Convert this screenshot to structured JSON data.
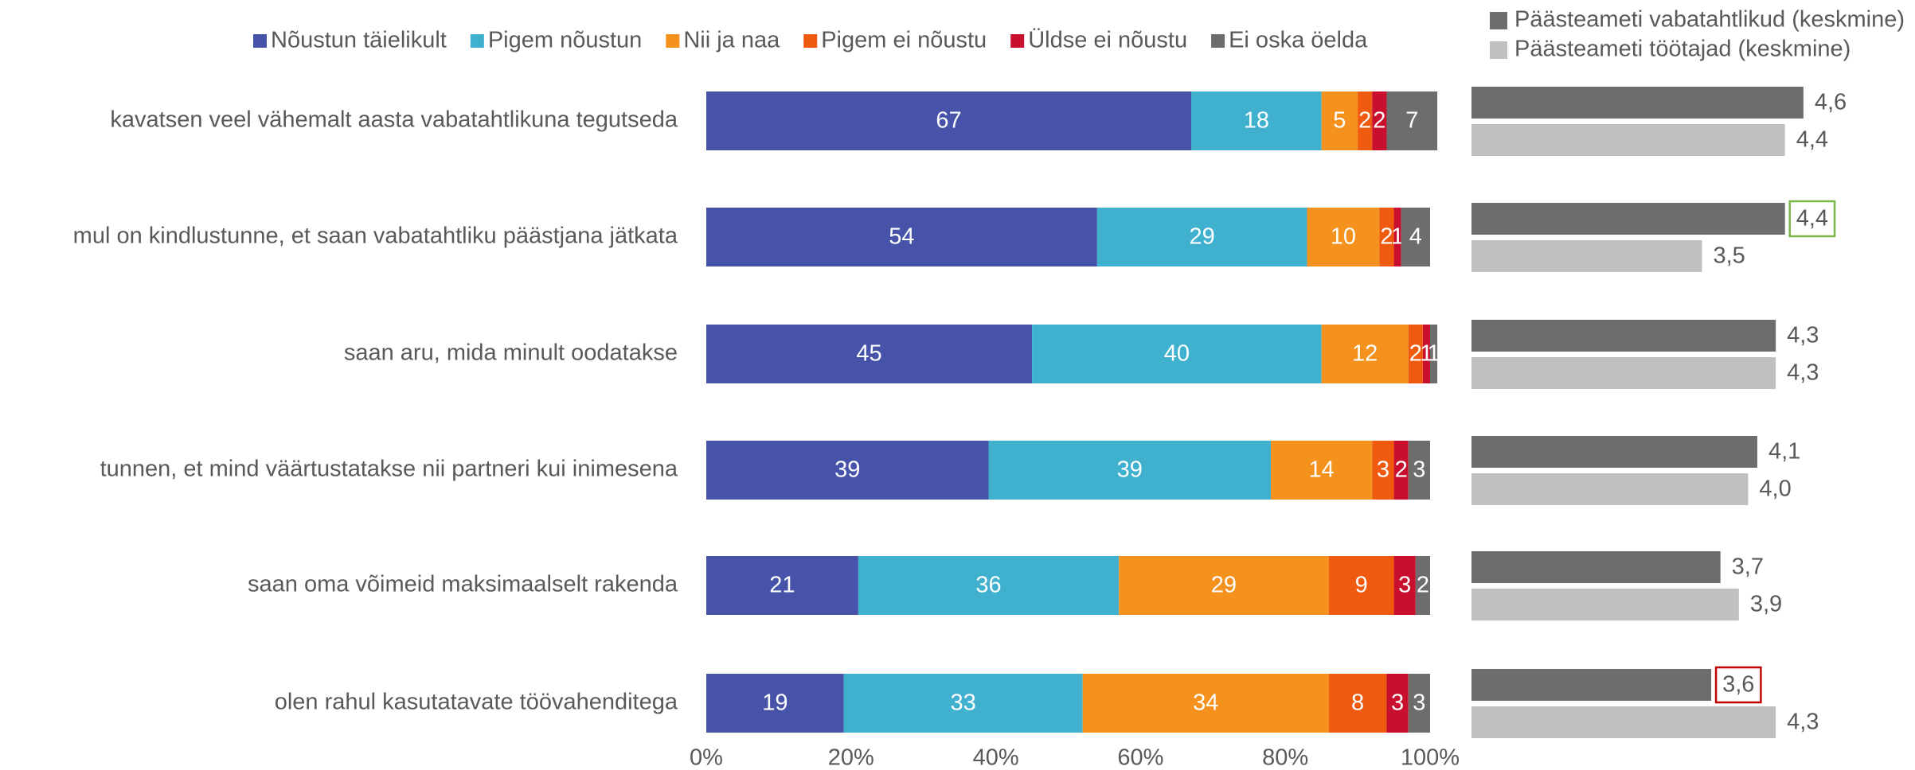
{
  "chart_data": [
    {
      "type": "stacked_bar_horizontal",
      "categories": [
        "kavatsen veel vähemalt aasta vabatahtlikuna tegutseda",
        "mul on kindlustunne, et saan vabatahtliku päästjana jätkata",
        "saan aru, mida minult oodatakse",
        "tunnen, et mind väärtustatakse nii partneri kui inimesena",
        "saan oma võimeid maksimaalselt rakenda",
        "olen rahul kasutatavate töövahenditega"
      ],
      "series": [
        {
          "name": "Nõustun täielikult",
          "color": "#4653a8",
          "values": [
            67,
            54,
            45,
            39,
            21,
            19
          ]
        },
        {
          "name": "Pigem nõustun",
          "color": "#3fb1cf",
          "values": [
            18,
            29,
            40,
            39,
            36,
            33
          ]
        },
        {
          "name": "Nii ja naa",
          "color": "#f5921e",
          "values": [
            5,
            10,
            12,
            14,
            29,
            34
          ]
        },
        {
          "name": "Pigem ei nõustu",
          "color": "#ef5a0f",
          "values": [
            2,
            2,
            2,
            3,
            9,
            8
          ]
        },
        {
          "name": "Üldse ei nõustu",
          "color": "#c8102e",
          "values": [
            2,
            1,
            1,
            2,
            3,
            3
          ]
        },
        {
          "name": "Ei oska öelda",
          "color": "#6d6d6d",
          "values": [
            7,
            4,
            1,
            3,
            2,
            3
          ]
        }
      ],
      "xlim": [
        0,
        100
      ],
      "xticks": [
        {
          "value": 0,
          "label": "0%"
        },
        {
          "value": 20,
          "label": "20%"
        },
        {
          "value": 40,
          "label": "40%"
        },
        {
          "value": 60,
          "label": "60%"
        },
        {
          "value": 80,
          "label": "80%"
        },
        {
          "value": 100,
          "label": "100%"
        }
      ],
      "legend": "top"
    },
    {
      "type": "bar_horizontal",
      "series": [
        {
          "name": "Päästeameti vabatahtlikud (keskmine)",
          "color": "#6d6d6d",
          "values": [
            4.6,
            4.4,
            4.3,
            4.1,
            3.7,
            3.6
          ],
          "value_labels": [
            "4,6",
            "4,4",
            "4,3",
            "4,1",
            "3,7",
            "3,6"
          ],
          "label_borders": [
            null,
            "#7ab648",
            null,
            null,
            null,
            "#c00000"
          ]
        },
        {
          "name": "Päästeameti töötajad (keskmine)",
          "color": "#c0c0c0",
          "values": [
            4.4,
            3.5,
            4.3,
            4.0,
            3.9,
            4.3
          ],
          "value_labels": [
            "4,4",
            "3,5",
            "4,3",
            "4,0",
            "3,9",
            "4,3"
          ]
        }
      ],
      "xlim": [
        1,
        5
      ],
      "legend": "top"
    }
  ]
}
